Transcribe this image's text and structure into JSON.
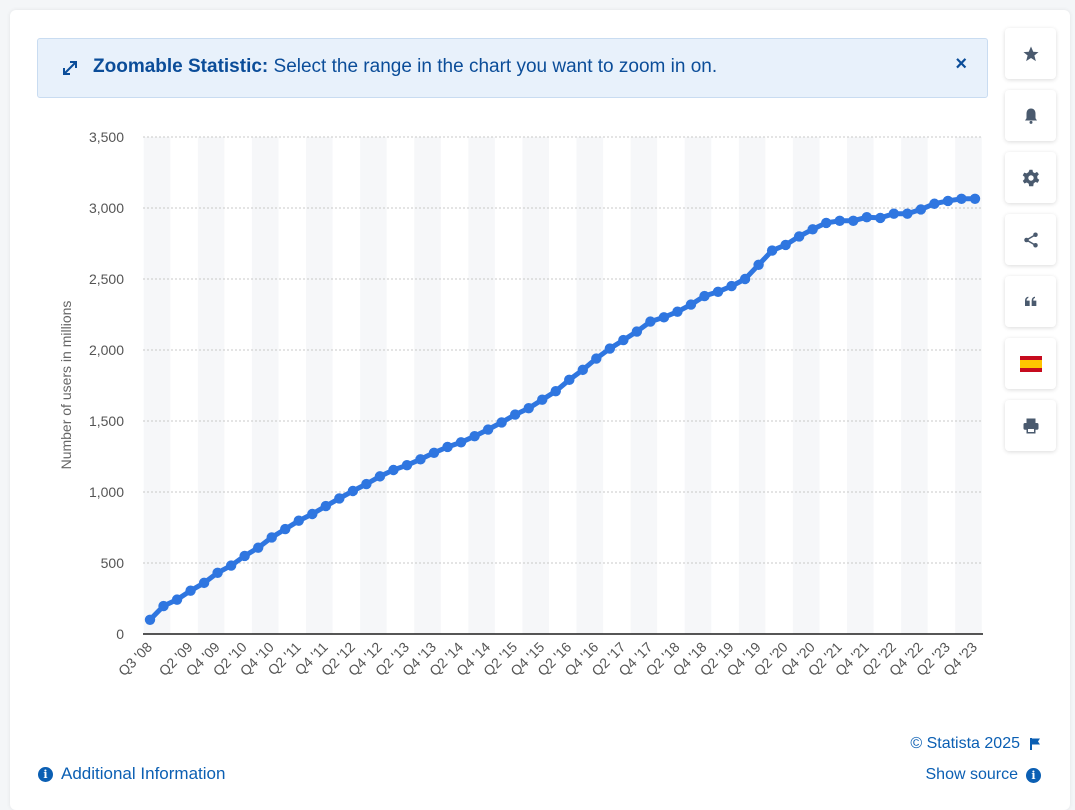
{
  "banner": {
    "bold_label": "Zoomable Statistic:",
    "text": " Select the range in the chart you want to zoom in on.",
    "close": "×"
  },
  "sidebar": {
    "items": [
      {
        "icon": "star-icon"
      },
      {
        "icon": "bell-icon"
      },
      {
        "icon": "gear-icon"
      },
      {
        "icon": "share-icon"
      },
      {
        "icon": "quote-icon"
      },
      {
        "icon": "spain-flag-icon"
      },
      {
        "icon": "print-icon"
      }
    ]
  },
  "footer": {
    "additional_info": "Additional Information",
    "copyright": "© Statista 2025",
    "show_source": "Show source"
  },
  "colors": {
    "line": "#2f76e0",
    "accent": "#0b5fb3",
    "banner_bg": "#e8f1fb"
  },
  "chart_data": {
    "type": "line",
    "title": "",
    "xlabel": "",
    "ylabel": "Number of users in millions",
    "ylim": [
      0,
      3500
    ],
    "yticks": [
      0,
      500,
      1000,
      1500,
      2000,
      2500,
      3000,
      3500
    ],
    "ytick_labels": [
      "0",
      "500",
      "1,000",
      "1,500",
      "2,000",
      "2,500",
      "3,000",
      "3,500"
    ],
    "grid": true,
    "x_tick_labels": [
      "Q3 '08",
      "Q2 '09",
      "Q4 '09",
      "Q2 '10",
      "Q4 '10",
      "Q2 '11",
      "Q4 '11",
      "Q2 '12",
      "Q4 '12",
      "Q2 '13",
      "Q4 '13",
      "Q2 '14",
      "Q4 '14",
      "Q2 '15",
      "Q4 '15",
      "Q2 '16",
      "Q4 '16",
      "Q2 '17",
      "Q4 '17",
      "Q2 '18",
      "Q4 '18",
      "Q2 '19",
      "Q4 '19",
      "Q2 '20",
      "Q4 '20",
      "Q2 '21",
      "Q4 '21",
      "Q2 '22",
      "Q4 '22",
      "Q2 '23",
      "Q4 '23"
    ],
    "categories": [
      "Q3 '08",
      "Q4 '08",
      "Q1 '09",
      "Q2 '09",
      "Q3 '09",
      "Q4 '09",
      "Q1 '10",
      "Q2 '10",
      "Q3 '10",
      "Q4 '10",
      "Q1 '11",
      "Q2 '11",
      "Q3 '11",
      "Q4 '11",
      "Q1 '12",
      "Q2 '12",
      "Q3 '12",
      "Q4 '12",
      "Q1 '13",
      "Q2 '13",
      "Q3 '13",
      "Q4 '13",
      "Q1 '14",
      "Q2 '14",
      "Q3 '14",
      "Q4 '14",
      "Q1 '15",
      "Q2 '15",
      "Q3 '15",
      "Q4 '15",
      "Q1 '16",
      "Q2 '16",
      "Q3 '16",
      "Q4 '16",
      "Q1 '17",
      "Q2 '17",
      "Q3 '17",
      "Q4 '17",
      "Q1 '18",
      "Q2 '18",
      "Q3 '18",
      "Q4 '18",
      "Q1 '19",
      "Q2 '19",
      "Q3 '19",
      "Q4 '19",
      "Q1 '20",
      "Q2 '20",
      "Q3 '20",
      "Q4 '20",
      "Q1 '21",
      "Q2 '21",
      "Q3 '21",
      "Q4 '21",
      "Q1 '22",
      "Q2 '22",
      "Q3 '22",
      "Q4 '22",
      "Q1 '23",
      "Q2 '23",
      "Q3 '23",
      "Q4 '23"
    ],
    "series": [
      {
        "values": [
          100,
          197,
          242,
          305,
          360,
          431,
          482,
          550,
          608,
          680,
          739,
          798,
          845,
          901,
          955,
          1007,
          1056,
          1110,
          1155,
          1189,
          1230,
          1276,
          1317,
          1350,
          1393,
          1440,
          1490,
          1545,
          1590,
          1650,
          1710,
          1790,
          1860,
          1940,
          2010,
          2070,
          2130,
          2200,
          2230,
          2270,
          2320,
          2380,
          2410,
          2450,
          2500,
          2600,
          2700,
          2740,
          2800,
          2850,
          2895,
          2910,
          2910,
          2935,
          2930,
          2960,
          2960,
          2990,
          3030,
          3050,
          3065,
          3065
        ]
      }
    ]
  }
}
